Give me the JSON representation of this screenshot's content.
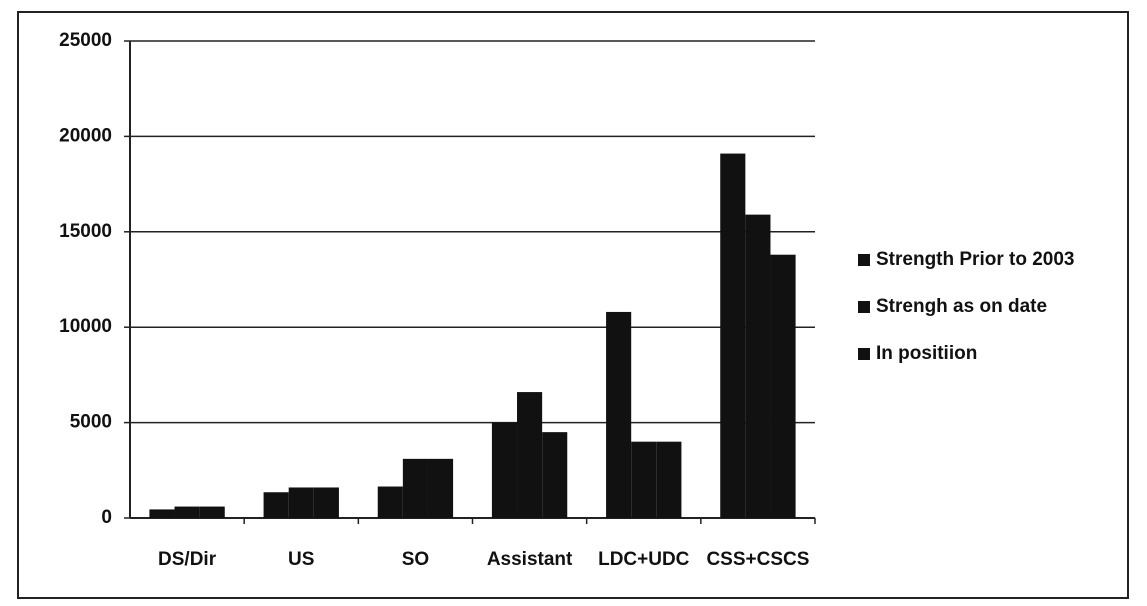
{
  "chart_data": {
    "type": "bar",
    "categories": [
      "DS/Dir",
      "US",
      "SO",
      "Assistant",
      "LDC+UDC",
      "CSS+CSCS"
    ],
    "series": [
      {
        "name": "Strength Prior to 2003",
        "color": "#111111",
        "values": [
          450,
          1350,
          1650,
          5000,
          10800,
          19100
        ]
      },
      {
        "name": "Strengh as on date",
        "color": "#111111",
        "values": [
          600,
          1600,
          3100,
          6600,
          4000,
          15900
        ]
      },
      {
        "name": "In positiion",
        "color": "#111111",
        "values": [
          600,
          1600,
          3100,
          4500,
          4000,
          13800
        ]
      }
    ],
    "ylim": [
      0,
      25000
    ],
    "yticks": [
      0,
      5000,
      10000,
      15000,
      20000,
      25000
    ],
    "grid": true,
    "legend": "right"
  }
}
